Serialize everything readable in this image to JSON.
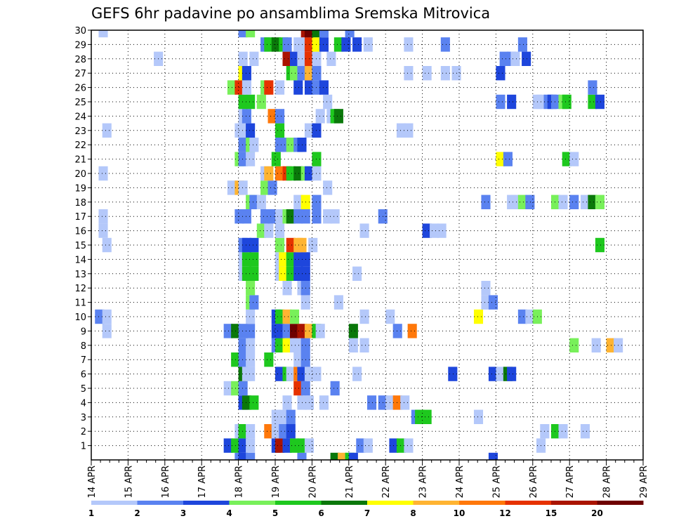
{
  "chart_data": {
    "type": "heatmap",
    "title": "GEFS 6hr padavine po ansamblima Sremska Mitrovica",
    "xlabel": "",
    "ylabel": "",
    "x_tick_labels": [
      "14 APR",
      "15 APR",
      "16 APR",
      "17 APR",
      "18 APR",
      "19 APR",
      "20 APR",
      "21 APR",
      "22 APR",
      "23 APR",
      "24 APR",
      "25 APR",
      "26 APR",
      "27 APR",
      "28 APR",
      "29 APR"
    ],
    "y_tick_labels": [
      "1",
      "2",
      "3",
      "4",
      "5",
      "6",
      "7",
      "8",
      "9",
      "10",
      "11",
      "12",
      "13",
      "14",
      "15",
      "16",
      "17",
      "18",
      "19",
      "20",
      "21",
      "22",
      "23",
      "24",
      "25",
      "26",
      "27",
      "28",
      "29",
      "30"
    ],
    "xlim_days": [
      14,
      29
    ],
    "ylim_members": [
      0,
      30
    ],
    "grid": true,
    "x_step_hours": 6,
    "colorbar": {
      "labels": [
        "1",
        "2",
        "3",
        "4",
        "5",
        "6",
        "7",
        "8",
        "10",
        "12",
        "15",
        "20"
      ],
      "colors": [
        "#b4c8fa",
        "#5a82f0",
        "#1e46dc",
        "#78f05a",
        "#1ec81e",
        "#0a780a",
        "#ffff00",
        "#ffb432",
        "#ff780a",
        "#e63200",
        "#aa1400",
        "#6e0000"
      ]
    },
    "cells": {
      "30": [
        [
          14.2,
          0
        ],
        [
          18.0,
          1
        ],
        [
          18.2,
          3
        ],
        [
          19.7,
          10
        ],
        [
          19.8,
          11
        ],
        [
          20.0,
          5
        ],
        [
          20.2,
          1
        ],
        [
          20.9,
          1
        ]
      ],
      "29": [
        [
          18.6,
          1
        ],
        [
          18.7,
          4
        ],
        [
          18.9,
          5
        ],
        [
          19.1,
          4
        ],
        [
          19.2,
          1
        ],
        [
          19.5,
          0
        ],
        [
          19.7,
          0
        ],
        [
          19.8,
          9
        ],
        [
          20.0,
          6
        ],
        [
          20.2,
          2
        ],
        [
          20.6,
          4
        ],
        [
          20.8,
          2
        ],
        [
          21.1,
          2
        ],
        [
          21.4,
          0
        ],
        [
          22.5,
          0
        ],
        [
          23.5,
          1
        ],
        [
          25.6,
          1
        ]
      ],
      "28": [
        [
          15.7,
          0
        ],
        [
          18.0,
          0
        ],
        [
          18.3,
          0
        ],
        [
          19.2,
          10
        ],
        [
          19.4,
          2
        ],
        [
          19.6,
          0
        ],
        [
          19.8,
          9
        ],
        [
          20.0,
          0
        ],
        [
          20.4,
          0
        ],
        [
          25.1,
          1
        ],
        [
          25.3,
          1
        ],
        [
          25.4,
          0
        ],
        [
          25.7,
          2
        ]
      ],
      "27": [
        [
          18.0,
          6
        ],
        [
          18.1,
          2
        ],
        [
          19.3,
          4
        ],
        [
          19.4,
          3
        ],
        [
          19.6,
          1
        ],
        [
          19.8,
          7
        ],
        [
          20.0,
          1
        ],
        [
          22.5,
          0
        ],
        [
          23.0,
          0
        ],
        [
          23.5,
          0
        ],
        [
          23.8,
          0
        ],
        [
          25.0,
          2
        ]
      ],
      "26": [
        [
          17.7,
          3
        ],
        [
          17.9,
          9
        ],
        [
          18.1,
          0
        ],
        [
          18.6,
          3
        ],
        [
          18.7,
          9
        ],
        [
          19.0,
          0
        ],
        [
          19.5,
          2
        ],
        [
          19.8,
          2
        ],
        [
          20.0,
          1
        ],
        [
          20.2,
          2
        ],
        [
          27.5,
          1
        ]
      ],
      "25": [
        [
          18.0,
          4
        ],
        [
          18.2,
          4
        ],
        [
          18.5,
          3
        ],
        [
          20.3,
          0
        ],
        [
          25.0,
          1
        ],
        [
          25.3,
          2
        ],
        [
          26.0,
          0
        ],
        [
          26.1,
          0
        ],
        [
          26.3,
          1
        ],
        [
          26.4,
          2
        ],
        [
          26.5,
          1
        ],
        [
          26.7,
          3
        ],
        [
          26.8,
          4
        ],
        [
          27.5,
          4
        ],
        [
          27.7,
          2
        ]
      ],
      "24": [
        [
          18.0,
          0
        ],
        [
          18.1,
          1
        ],
        [
          18.8,
          8
        ],
        [
          19.0,
          1
        ],
        [
          20.1,
          0
        ],
        [
          20.4,
          0
        ],
        [
          20.5,
          4
        ],
        [
          20.6,
          5
        ]
      ],
      "23": [
        [
          14.3,
          0
        ],
        [
          17.9,
          0
        ],
        [
          18.0,
          0
        ],
        [
          18.2,
          2
        ],
        [
          19.0,
          4
        ],
        [
          19.8,
          0
        ],
        [
          20.0,
          2
        ],
        [
          22.3,
          0
        ],
        [
          22.5,
          0
        ]
      ],
      "22": [
        [
          18.0,
          1
        ],
        [
          18.2,
          3
        ],
        [
          18.3,
          0
        ],
        [
          19.0,
          1
        ],
        [
          19.2,
          1
        ],
        [
          19.3,
          3
        ],
        [
          19.5,
          1
        ],
        [
          19.6,
          2
        ]
      ],
      "21": [
        [
          17.9,
          3
        ],
        [
          18.0,
          1
        ],
        [
          18.2,
          0
        ],
        [
          18.9,
          4
        ],
        [
          20.0,
          4
        ],
        [
          25.0,
          6
        ],
        [
          25.2,
          1
        ],
        [
          26.8,
          4
        ],
        [
          27.0,
          0
        ]
      ],
      "20": [
        [
          14.2,
          0
        ],
        [
          18.6,
          0
        ],
        [
          18.7,
          7
        ],
        [
          19.0,
          8
        ],
        [
          19.2,
          9
        ],
        [
          19.3,
          4
        ],
        [
          19.5,
          5
        ],
        [
          19.7,
          3
        ],
        [
          19.8,
          2
        ],
        [
          20.0,
          0
        ]
      ],
      "19": [
        [
          17.7,
          0
        ],
        [
          17.9,
          7
        ],
        [
          18.0,
          0
        ],
        [
          18.6,
          3
        ],
        [
          18.8,
          1
        ],
        [
          20.3,
          0
        ]
      ],
      "18": [
        [
          18.2,
          3
        ],
        [
          18.3,
          1
        ],
        [
          18.5,
          0
        ],
        [
          19.5,
          0
        ],
        [
          19.7,
          6
        ],
        [
          20.0,
          1
        ],
        [
          24.6,
          1
        ],
        [
          25.3,
          0
        ],
        [
          25.4,
          0
        ],
        [
          25.6,
          3
        ],
        [
          25.8,
          1
        ],
        [
          26.5,
          3
        ],
        [
          26.7,
          0
        ],
        [
          27.0,
          1
        ],
        [
          27.3,
          0
        ],
        [
          27.5,
          5
        ],
        [
          27.7,
          3
        ]
      ],
      "17": [
        [
          14.2,
          0
        ],
        [
          17.9,
          1
        ],
        [
          18.1,
          1
        ],
        [
          18.6,
          1
        ],
        [
          18.8,
          1
        ],
        [
          19.0,
          0
        ],
        [
          19.2,
          3
        ],
        [
          19.3,
          5
        ],
        [
          19.5,
          1
        ],
        [
          19.7,
          1
        ],
        [
          20.0,
          1
        ],
        [
          20.3,
          0
        ],
        [
          20.5,
          0
        ],
        [
          21.8,
          1
        ]
      ],
      "16": [
        [
          14.2,
          0
        ],
        [
          18.5,
          3
        ],
        [
          18.7,
          0
        ],
        [
          19.0,
          0
        ],
        [
          21.3,
          0
        ],
        [
          23.0,
          2
        ],
        [
          23.2,
          0
        ],
        [
          23.4,
          0
        ]
      ],
      "15": [
        [
          14.3,
          0
        ],
        [
          18.0,
          1
        ],
        [
          18.1,
          2
        ],
        [
          18.3,
          2
        ],
        [
          19.0,
          3
        ],
        [
          19.3,
          9
        ],
        [
          19.5,
          7
        ],
        [
          19.6,
          7
        ],
        [
          19.9,
          0
        ],
        [
          27.7,
          4
        ]
      ],
      "14": [
        [
          18.0,
          0
        ],
        [
          18.1,
          4
        ],
        [
          18.3,
          4
        ],
        [
          19.0,
          0
        ],
        [
          19.1,
          6
        ],
        [
          19.3,
          4
        ],
        [
          19.5,
          2
        ],
        [
          19.7,
          2
        ]
      ],
      "13": [
        [
          18.0,
          0
        ],
        [
          18.1,
          4
        ],
        [
          18.3,
          4
        ],
        [
          19.0,
          0
        ],
        [
          19.1,
          6
        ],
        [
          19.3,
          4
        ],
        [
          19.5,
          2
        ],
        [
          19.7,
          2
        ],
        [
          21.1,
          0
        ]
      ],
      "12": [
        [
          18.2,
          3
        ],
        [
          19.2,
          0
        ],
        [
          19.6,
          0
        ],
        [
          19.7,
          1
        ],
        [
          24.6,
          0
        ]
      ],
      "11": [
        [
          18.2,
          3
        ],
        [
          18.3,
          1
        ],
        [
          19.7,
          0
        ],
        [
          20.6,
          0
        ],
        [
          24.6,
          0
        ],
        [
          24.8,
          1
        ]
      ],
      "10": [
        [
          14.1,
          1
        ],
        [
          14.3,
          0
        ],
        [
          18.2,
          0
        ],
        [
          18.9,
          2
        ],
        [
          19.0,
          4
        ],
        [
          19.2,
          7
        ],
        [
          19.4,
          3
        ],
        [
          21.3,
          0
        ],
        [
          22.0,
          0
        ],
        [
          24.4,
          6
        ],
        [
          25.6,
          1
        ],
        [
          25.8,
          0
        ],
        [
          26.0,
          3
        ]
      ],
      "9": [
        [
          14.3,
          0
        ],
        [
          17.6,
          1
        ],
        [
          17.8,
          5
        ],
        [
          18.0,
          1
        ],
        [
          18.2,
          1
        ],
        [
          18.9,
          2
        ],
        [
          19.0,
          2
        ],
        [
          19.2,
          1
        ],
        [
          19.4,
          11
        ],
        [
          19.6,
          10
        ],
        [
          19.8,
          7
        ],
        [
          20.0,
          4
        ],
        [
          20.1,
          0
        ],
        [
          21.0,
          5
        ],
        [
          22.2,
          1
        ],
        [
          22.6,
          8
        ]
      ],
      "8": [
        [
          18.0,
          1
        ],
        [
          18.2,
          0
        ],
        [
          18.9,
          1
        ],
        [
          19.0,
          4
        ],
        [
          19.2,
          6
        ],
        [
          19.4,
          0
        ],
        [
          19.6,
          0
        ],
        [
          19.7,
          1
        ],
        [
          21.0,
          0
        ],
        [
          21.3,
          0
        ],
        [
          27.0,
          3
        ],
        [
          27.6,
          0
        ],
        [
          28.0,
          7
        ],
        [
          28.2,
          0
        ]
      ],
      "7": [
        [
          17.8,
          4
        ],
        [
          18.0,
          1
        ],
        [
          18.2,
          0
        ],
        [
          18.7,
          4
        ],
        [
          19.5,
          0
        ],
        [
          19.7,
          1
        ]
      ],
      "6": [
        [
          18.0,
          5
        ],
        [
          18.1,
          0
        ],
        [
          18.2,
          0
        ],
        [
          19.0,
          2
        ],
        [
          19.2,
          4
        ],
        [
          19.3,
          0
        ],
        [
          19.5,
          8
        ],
        [
          19.6,
          2
        ],
        [
          19.8,
          0
        ],
        [
          20.0,
          0
        ],
        [
          21.1,
          0
        ],
        [
          23.7,
          2
        ],
        [
          24.8,
          2
        ],
        [
          25.0,
          0
        ],
        [
          25.2,
          5
        ],
        [
          25.3,
          2
        ]
      ],
      "5": [
        [
          17.6,
          0
        ],
        [
          17.8,
          3
        ],
        [
          18.0,
          1
        ],
        [
          19.5,
          9
        ],
        [
          19.7,
          1
        ],
        [
          20.5,
          1
        ]
      ],
      "4": [
        [
          18.0,
          2
        ],
        [
          18.1,
          5
        ],
        [
          18.3,
          4
        ],
        [
          19.2,
          0
        ],
        [
          19.6,
          0
        ],
        [
          19.8,
          0
        ],
        [
          20.2,
          0
        ],
        [
          21.5,
          1
        ],
        [
          21.8,
          1
        ],
        [
          22.0,
          0
        ],
        [
          22.2,
          8
        ],
        [
          22.4,
          0
        ]
      ],
      "3": [
        [
          18.9,
          0
        ],
        [
          19.1,
          0
        ],
        [
          19.3,
          1
        ],
        [
          22.7,
          1
        ],
        [
          22.8,
          4
        ],
        [
          23.0,
          4
        ],
        [
          24.4,
          0
        ]
      ],
      "2": [
        [
          17.9,
          0
        ],
        [
          18.0,
          4
        ],
        [
          18.2,
          0
        ],
        [
          18.7,
          8
        ],
        [
          18.9,
          0
        ],
        [
          19.1,
          1
        ],
        [
          19.3,
          2
        ],
        [
          26.2,
          0
        ],
        [
          26.5,
          4
        ],
        [
          26.7,
          0
        ],
        [
          27.3,
          0
        ]
      ],
      "1": [
        [
          17.6,
          2
        ],
        [
          17.8,
          4
        ],
        [
          18.0,
          2
        ],
        [
          18.2,
          0
        ],
        [
          18.9,
          2
        ],
        [
          19.0,
          10
        ],
        [
          19.2,
          2
        ],
        [
          19.4,
          4
        ],
        [
          19.6,
          4
        ],
        [
          19.8,
          0
        ],
        [
          21.2,
          1
        ],
        [
          21.4,
          0
        ],
        [
          22.1,
          2
        ],
        [
          22.3,
          4
        ],
        [
          22.5,
          0
        ],
        [
          26.1,
          0
        ]
      ],
      "0": [
        [
          17.9,
          1
        ],
        [
          18.0,
          2
        ],
        [
          18.2,
          1
        ],
        [
          19.6,
          1
        ],
        [
          20.5,
          5
        ],
        [
          20.7,
          7
        ],
        [
          20.9,
          4
        ],
        [
          21.0,
          2
        ],
        [
          24.8,
          2
        ]
      ]
    }
  }
}
